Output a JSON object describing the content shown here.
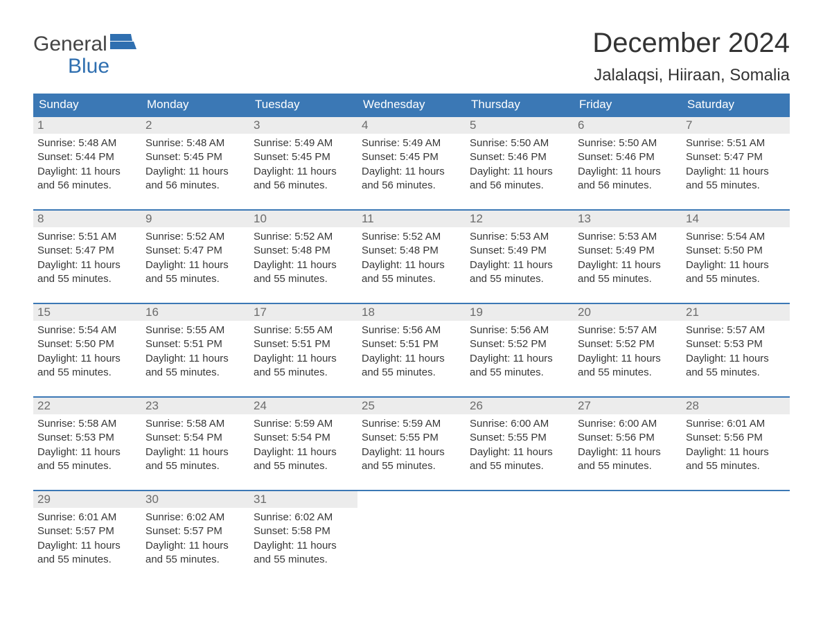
{
  "logo": {
    "top": "General",
    "bottom": "Blue",
    "flag_color": "#2f6fb0"
  },
  "title": "December 2024",
  "subtitle": "Jalalaqsi, Hiiraan, Somalia",
  "colors": {
    "header_bg": "#3b78b5",
    "header_text": "#ffffff",
    "week_border": "#3b78b5",
    "daynum_bg": "#ececec",
    "daynum_text": "#6b6b6b",
    "body_text": "#373737",
    "page_bg": "#ffffff"
  },
  "typography": {
    "title_fontsize": 40,
    "subtitle_fontsize": 24,
    "dayhead_fontsize": 17,
    "daynum_fontsize": 17,
    "body_fontsize": 15,
    "logo_fontsize": 30
  },
  "layout": {
    "columns": 7,
    "rows": 5,
    "cell_min_height": 80
  },
  "dayheads": [
    "Sunday",
    "Monday",
    "Tuesday",
    "Wednesday",
    "Thursday",
    "Friday",
    "Saturday"
  ],
  "weeks": [
    [
      {
        "n": "1",
        "sr": "Sunrise: 5:48 AM",
        "ss": "Sunset: 5:44 PM",
        "d1": "Daylight: 11 hours",
        "d2": "and 56 minutes."
      },
      {
        "n": "2",
        "sr": "Sunrise: 5:48 AM",
        "ss": "Sunset: 5:45 PM",
        "d1": "Daylight: 11 hours",
        "d2": "and 56 minutes."
      },
      {
        "n": "3",
        "sr": "Sunrise: 5:49 AM",
        "ss": "Sunset: 5:45 PM",
        "d1": "Daylight: 11 hours",
        "d2": "and 56 minutes."
      },
      {
        "n": "4",
        "sr": "Sunrise: 5:49 AM",
        "ss": "Sunset: 5:45 PM",
        "d1": "Daylight: 11 hours",
        "d2": "and 56 minutes."
      },
      {
        "n": "5",
        "sr": "Sunrise: 5:50 AM",
        "ss": "Sunset: 5:46 PM",
        "d1": "Daylight: 11 hours",
        "d2": "and 56 minutes."
      },
      {
        "n": "6",
        "sr": "Sunrise: 5:50 AM",
        "ss": "Sunset: 5:46 PM",
        "d1": "Daylight: 11 hours",
        "d2": "and 56 minutes."
      },
      {
        "n": "7",
        "sr": "Sunrise: 5:51 AM",
        "ss": "Sunset: 5:47 PM",
        "d1": "Daylight: 11 hours",
        "d2": "and 55 minutes."
      }
    ],
    [
      {
        "n": "8",
        "sr": "Sunrise: 5:51 AM",
        "ss": "Sunset: 5:47 PM",
        "d1": "Daylight: 11 hours",
        "d2": "and 55 minutes."
      },
      {
        "n": "9",
        "sr": "Sunrise: 5:52 AM",
        "ss": "Sunset: 5:47 PM",
        "d1": "Daylight: 11 hours",
        "d2": "and 55 minutes."
      },
      {
        "n": "10",
        "sr": "Sunrise: 5:52 AM",
        "ss": "Sunset: 5:48 PM",
        "d1": "Daylight: 11 hours",
        "d2": "and 55 minutes."
      },
      {
        "n": "11",
        "sr": "Sunrise: 5:52 AM",
        "ss": "Sunset: 5:48 PM",
        "d1": "Daylight: 11 hours",
        "d2": "and 55 minutes."
      },
      {
        "n": "12",
        "sr": "Sunrise: 5:53 AM",
        "ss": "Sunset: 5:49 PM",
        "d1": "Daylight: 11 hours",
        "d2": "and 55 minutes."
      },
      {
        "n": "13",
        "sr": "Sunrise: 5:53 AM",
        "ss": "Sunset: 5:49 PM",
        "d1": "Daylight: 11 hours",
        "d2": "and 55 minutes."
      },
      {
        "n": "14",
        "sr": "Sunrise: 5:54 AM",
        "ss": "Sunset: 5:50 PM",
        "d1": "Daylight: 11 hours",
        "d2": "and 55 minutes."
      }
    ],
    [
      {
        "n": "15",
        "sr": "Sunrise: 5:54 AM",
        "ss": "Sunset: 5:50 PM",
        "d1": "Daylight: 11 hours",
        "d2": "and 55 minutes."
      },
      {
        "n": "16",
        "sr": "Sunrise: 5:55 AM",
        "ss": "Sunset: 5:51 PM",
        "d1": "Daylight: 11 hours",
        "d2": "and 55 minutes."
      },
      {
        "n": "17",
        "sr": "Sunrise: 5:55 AM",
        "ss": "Sunset: 5:51 PM",
        "d1": "Daylight: 11 hours",
        "d2": "and 55 minutes."
      },
      {
        "n": "18",
        "sr": "Sunrise: 5:56 AM",
        "ss": "Sunset: 5:51 PM",
        "d1": "Daylight: 11 hours",
        "d2": "and 55 minutes."
      },
      {
        "n": "19",
        "sr": "Sunrise: 5:56 AM",
        "ss": "Sunset: 5:52 PM",
        "d1": "Daylight: 11 hours",
        "d2": "and 55 minutes."
      },
      {
        "n": "20",
        "sr": "Sunrise: 5:57 AM",
        "ss": "Sunset: 5:52 PM",
        "d1": "Daylight: 11 hours",
        "d2": "and 55 minutes."
      },
      {
        "n": "21",
        "sr": "Sunrise: 5:57 AM",
        "ss": "Sunset: 5:53 PM",
        "d1": "Daylight: 11 hours",
        "d2": "and 55 minutes."
      }
    ],
    [
      {
        "n": "22",
        "sr": "Sunrise: 5:58 AM",
        "ss": "Sunset: 5:53 PM",
        "d1": "Daylight: 11 hours",
        "d2": "and 55 minutes."
      },
      {
        "n": "23",
        "sr": "Sunrise: 5:58 AM",
        "ss": "Sunset: 5:54 PM",
        "d1": "Daylight: 11 hours",
        "d2": "and 55 minutes."
      },
      {
        "n": "24",
        "sr": "Sunrise: 5:59 AM",
        "ss": "Sunset: 5:54 PM",
        "d1": "Daylight: 11 hours",
        "d2": "and 55 minutes."
      },
      {
        "n": "25",
        "sr": "Sunrise: 5:59 AM",
        "ss": "Sunset: 5:55 PM",
        "d1": "Daylight: 11 hours",
        "d2": "and 55 minutes."
      },
      {
        "n": "26",
        "sr": "Sunrise: 6:00 AM",
        "ss": "Sunset: 5:55 PM",
        "d1": "Daylight: 11 hours",
        "d2": "and 55 minutes."
      },
      {
        "n": "27",
        "sr": "Sunrise: 6:00 AM",
        "ss": "Sunset: 5:56 PM",
        "d1": "Daylight: 11 hours",
        "d2": "and 55 minutes."
      },
      {
        "n": "28",
        "sr": "Sunrise: 6:01 AM",
        "ss": "Sunset: 5:56 PM",
        "d1": "Daylight: 11 hours",
        "d2": "and 55 minutes."
      }
    ],
    [
      {
        "n": "29",
        "sr": "Sunrise: 6:01 AM",
        "ss": "Sunset: 5:57 PM",
        "d1": "Daylight: 11 hours",
        "d2": "and 55 minutes."
      },
      {
        "n": "30",
        "sr": "Sunrise: 6:02 AM",
        "ss": "Sunset: 5:57 PM",
        "d1": "Daylight: 11 hours",
        "d2": "and 55 minutes."
      },
      {
        "n": "31",
        "sr": "Sunrise: 6:02 AM",
        "ss": "Sunset: 5:58 PM",
        "d1": "Daylight: 11 hours",
        "d2": "and 55 minutes."
      },
      null,
      null,
      null,
      null
    ]
  ]
}
